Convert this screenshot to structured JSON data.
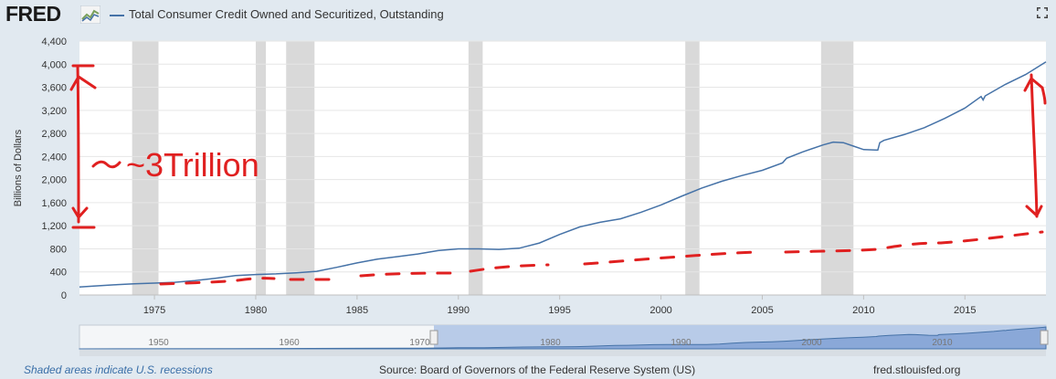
{
  "header": {
    "logo_text": "FRED",
    "logo_icon": "line-chart-icon",
    "series_legend": "Total Consumer Credit Owned and Securitized, Outstanding",
    "fullscreen_icon": "fullscreen-icon"
  },
  "footer": {
    "recession_note": "Shaded areas indicate U.S. recessions",
    "source": "Source: Board of Governors of the Federal Reserve System (US)",
    "site": "fred.stlouisfed.org"
  },
  "annotation": {
    "text": "~3Trillion",
    "color": "#e02020"
  },
  "navigator": {
    "tick_labels": [
      "1950",
      "1960",
      "1970",
      "1980",
      "1990",
      "2000",
      "2010"
    ]
  },
  "colors": {
    "series": "#4572a7",
    "recession": "#d9d9d9",
    "annotation": "#e02020",
    "background": "#e1e9f0"
  },
  "chart_data": {
    "type": "line",
    "title": "Total Consumer Credit Owned and Securitized, Outstanding",
    "ylabel": "Billions of Dollars",
    "xlabel": "",
    "xlim": [
      1971.3,
      2019.0
    ],
    "ylim": [
      0,
      4400
    ],
    "x_ticks": [
      "1975",
      "1980",
      "1985",
      "1990",
      "1995",
      "2000",
      "2005",
      "2010",
      "2015"
    ],
    "y_ticks": [
      "0",
      "400",
      "800",
      "1,200",
      "1,600",
      "2,000",
      "2,400",
      "2,800",
      "3,200",
      "3,600",
      "4,000",
      "4,400"
    ],
    "grid": true,
    "legend": "top-left",
    "recessions": [
      [
        1973.9,
        1975.2
      ],
      [
        1980.0,
        1980.5
      ],
      [
        1981.5,
        1982.9
      ],
      [
        1990.5,
        1991.2
      ],
      [
        2001.2,
        2001.9
      ],
      [
        2007.9,
        2009.5
      ]
    ],
    "series": [
      {
        "name": "Total Consumer Credit Owned and Securitized, Outstanding",
        "x": [
          1971.3,
          1972,
          1973,
          1974,
          1975,
          1976,
          1977,
          1978,
          1979,
          1980,
          1981,
          1982,
          1983,
          1984,
          1985,
          1986,
          1987,
          1988,
          1989,
          1990,
          1991,
          1992,
          1993,
          1994,
          1995,
          1996,
          1997,
          1998,
          1999,
          2000,
          2001,
          2002,
          2003,
          2004,
          2005,
          2006,
          2006.2,
          2007,
          2008,
          2008.5,
          2009,
          2009.5,
          2010,
          2010.7,
          2010.8,
          2011,
          2012,
          2013,
          2014,
          2015,
          2015.8,
          2015.9,
          2016,
          2017,
          2018,
          2019.0
        ],
        "values": [
          140,
          155,
          175,
          195,
          205,
          220,
          250,
          290,
          335,
          355,
          365,
          385,
          410,
          480,
          555,
          620,
          665,
          710,
          770,
          800,
          800,
          790,
          810,
          900,
          1050,
          1180,
          1260,
          1320,
          1430,
          1560,
          1710,
          1850,
          1970,
          2070,
          2160,
          2290,
          2370,
          2480,
          2600,
          2650,
          2640,
          2580,
          2520,
          2510,
          2640,
          2680,
          2780,
          2900,
          3060,
          3240,
          3440,
          3380,
          3450,
          3650,
          3820,
          4040
        ]
      }
    ]
  }
}
